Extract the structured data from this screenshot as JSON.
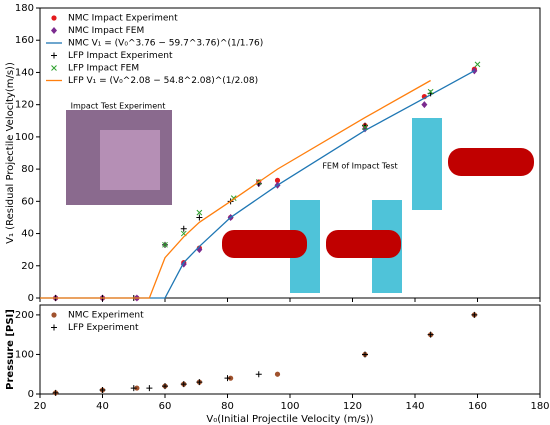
{
  "chart_data": [
    {
      "type": "scatter",
      "ylabel": "V₁ (Residual Projectile Velocity(m/s))",
      "xlim": [
        20,
        180
      ],
      "xticks": [
        20,
        40,
        60,
        80,
        100,
        120,
        140,
        160,
        180
      ],
      "ylim": [
        0,
        180
      ],
      "yticks": [
        0,
        20,
        40,
        60,
        80,
        100,
        120,
        140,
        160,
        180
      ],
      "legend": "upper left",
      "annotations": [
        "Impact Test Experiment",
        "FEM of Impact Test"
      ],
      "series": [
        {
          "name": "NMC Impact Experiment",
          "color": "#e41a1c",
          "marker": "o",
          "x": [
            25,
            40,
            51,
            66,
            71,
            81,
            90,
            96,
            124,
            143,
            159
          ],
          "values": [
            0,
            0,
            0,
            22,
            31,
            50,
            72,
            73,
            107,
            125,
            142
          ]
        },
        {
          "name": "NMC Impact FEM",
          "color": "#7b2b8f",
          "marker": "D",
          "x": [
            25,
            40,
            51,
            66,
            71,
            81,
            90,
            96,
            124,
            143,
            159
          ],
          "values": [
            0,
            0,
            0,
            21,
            30,
            50,
            71,
            70,
            105,
            120,
            141
          ]
        },
        {
          "name": "NMC  V₁ = (V₀^3.76 − 59.7^3.76)^(1/1.76)",
          "color": "#1f77b4",
          "marker": "line",
          "x": [
            20,
            60,
            66,
            71,
            81,
            96,
            124,
            143,
            159
          ],
          "values": [
            0,
            0,
            22,
            32,
            50,
            70,
            104,
            124,
            141
          ]
        },
        {
          "name": "LFP Impact Experiment",
          "color": "#000000",
          "marker": "+",
          "x": [
            25,
            40,
            50,
            60,
            66,
            71,
            81,
            90,
            124,
            145
          ],
          "values": [
            0,
            0,
            0,
            33,
            43,
            50,
            60,
            71,
            107,
            127
          ]
        },
        {
          "name": "LFP Impact FEM",
          "color": "#2ca02c",
          "marker": "x",
          "x": [
            60,
            66,
            71,
            82,
            90,
            124,
            145,
            160
          ],
          "values": [
            33,
            40,
            53,
            62,
            72,
            106,
            128,
            145
          ]
        },
        {
          "name": "LFP  V₁ = (V₀^2.08 − 54.8^2.08)^(1/2.08)",
          "color": "#ff7f0e",
          "marker": "line",
          "x": [
            20,
            55,
            60,
            66,
            71,
            81,
            96,
            124,
            145
          ],
          "values": [
            0,
            0,
            25,
            38,
            47,
            60,
            80,
            112,
            135
          ]
        }
      ]
    },
    {
      "type": "scatter",
      "xlabel": "V₀(Initial Projectile Velocity (m/s))",
      "ylabel": "Pressure [PSI]",
      "xlim": [
        20,
        180
      ],
      "xticks": [
        20,
        40,
        60,
        80,
        100,
        120,
        140,
        160,
        180
      ],
      "ylim": [
        0,
        225
      ],
      "yticks": [
        0,
        100,
        200
      ],
      "legend": "upper left",
      "series": [
        {
          "name": "NMC Experiment",
          "color": "#a0522d",
          "marker": "o",
          "x": [
            25,
            40,
            51,
            60,
            66,
            71,
            81,
            96,
            124,
            145,
            159
          ],
          "values": [
            3,
            10,
            15,
            20,
            25,
            30,
            40,
            50,
            100,
            150,
            200
          ]
        },
        {
          "name": "LFP Experiment",
          "color": "#000000",
          "marker": "+",
          "x": [
            25,
            40,
            50,
            55,
            60,
            66,
            71,
            80,
            90,
            124,
            145,
            159
          ],
          "values": [
            3,
            10,
            15,
            15,
            20,
            25,
            30,
            40,
            50,
            100,
            150,
            200
          ]
        }
      ]
    }
  ]
}
